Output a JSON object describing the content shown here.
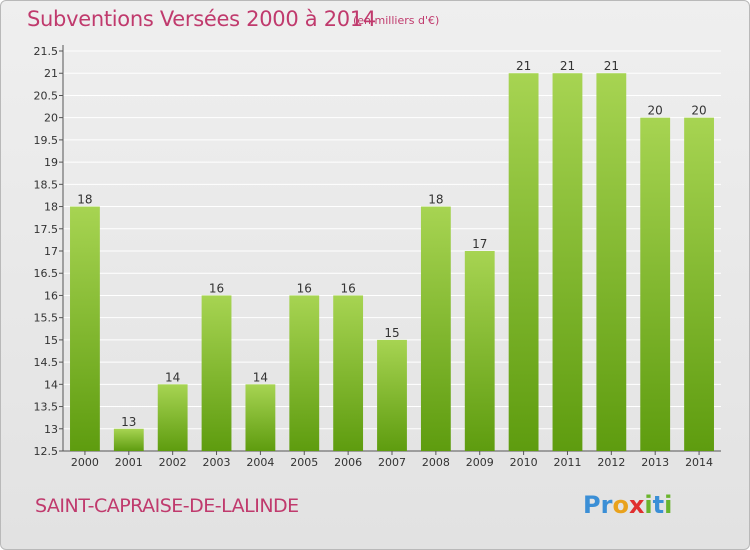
{
  "title": "Subventions Versées 2000 à 2014",
  "subtitle": "(en milliers d'€)",
  "commune": "SAINT-CAPRAISE-DE-LALINDE",
  "brand": {
    "letters": [
      "P",
      "r",
      "o",
      "x",
      "i",
      "t",
      "i"
    ],
    "colors": [
      "#3b8fd6",
      "#3b8fd6",
      "#e9a21c",
      "#e02f2f",
      "#6ab42d",
      "#3b8fd6",
      "#6ab42d"
    ]
  },
  "colors": {
    "title": "#c03a6d",
    "bar_top": "#a7d452",
    "bar_bottom": "#5e9c0f",
    "axis_text": "#333333"
  },
  "chart_data": {
    "type": "bar",
    "categories": [
      "2000",
      "2001",
      "2002",
      "2003",
      "2004",
      "2005",
      "2006",
      "2007",
      "2008",
      "2009",
      "2010",
      "2011",
      "2012",
      "2013",
      "2014"
    ],
    "values": [
      18,
      13,
      14,
      16,
      14,
      16,
      16,
      15,
      18,
      17,
      21,
      21,
      21,
      20,
      20
    ],
    "value_labels": [
      "18",
      "13",
      "14",
      "16",
      "14",
      "16",
      "16",
      "15",
      "18",
      "17",
      "21",
      "21",
      "21",
      "20",
      "20"
    ],
    "ylim": [
      12.5,
      21.5
    ],
    "yticks": [
      12.5,
      13,
      13.5,
      14,
      14.5,
      15,
      15.5,
      16,
      16.5,
      17,
      17.5,
      18,
      18.5,
      19,
      19.5,
      20,
      20.5,
      21,
      21.5
    ],
    "ytick_labels": [
      "12.5",
      "13",
      "13.5",
      "14",
      "14.5",
      "15",
      "15.5",
      "16",
      "16.5",
      "17",
      "17.5",
      "18",
      "18.5",
      "19",
      "19.5",
      "20",
      "20.5",
      "21",
      "21.5"
    ],
    "grid": true,
    "legend": "none"
  }
}
